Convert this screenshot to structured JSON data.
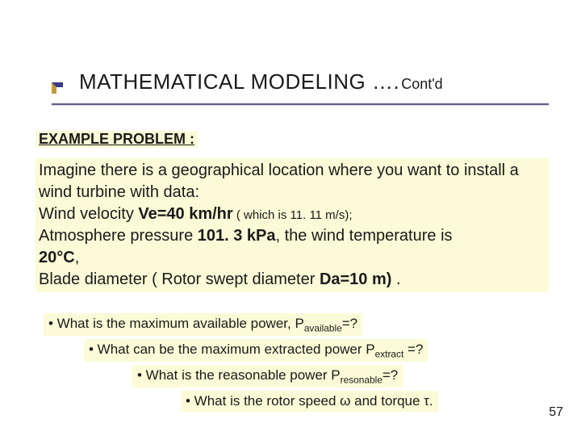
{
  "colors": {
    "highlight_bg": "#fbfbd8",
    "text": "#1a1a1a",
    "rule": "#5a5a8a",
    "marker_left": "#c49a3a",
    "marker_top": "#3a3a8a"
  },
  "title": {
    "main": "MATHEMATICAL MODELING ….",
    "contd": "Cont'd"
  },
  "subtitle": "EXAMPLE PROBLEM :",
  "body": {
    "line1": "Imagine there is a geographical location where you want to install a wind turbine with data:",
    "line2a": "Wind velocity ",
    "line2b": "Ve=40 km/hr",
    "line2c_small": "  ( which is 11. 11 m/s);",
    "line3a": "Atmosphere pressure ",
    "line3b": "101. 3 kPa",
    "line3c": ", the wind temperature is ",
    "line4": "20°C",
    "line4b": ",",
    "line5a": "Blade diameter ( Rotor swept diameter ",
    "line5b": "Da=10 m)",
    "line5c": " ."
  },
  "questions": {
    "q1_pre": "• What is the maximum available power, P",
    "q1_sub": "available",
    "q1_post": "=?",
    "q2_pre": "• What can be the maximum extracted power P",
    "q2_sub": "extract",
    "q2_post": " =?",
    "q3_pre": "• What is the reasonable power P",
    "q3_sub": "resonable",
    "q3_post": "=?",
    "q4": "• What is the rotor speed ω and torque τ."
  },
  "page_number": "57"
}
